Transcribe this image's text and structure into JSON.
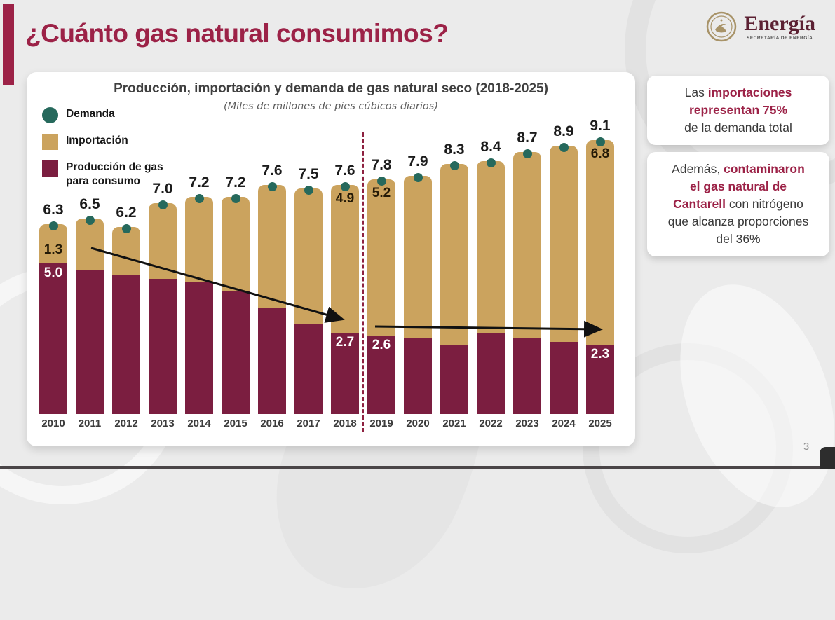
{
  "slide": {
    "title": "¿Cuánto gas natural consumimos?",
    "page_number": "3"
  },
  "logo": {
    "wordmark": "Energía",
    "subtitle": "SECRETARÍA DE ENERGÍA"
  },
  "chart": {
    "title": "Producción, importación y demanda de gas natural seco (2018-2025)",
    "subtitle": "(Miles de millones de pies cúbicos diarios)",
    "legend": [
      {
        "label": "Demanda",
        "color": "#26695c",
        "shape": "circle"
      },
      {
        "label": "Importación",
        "color": "#cba35e",
        "shape": "square"
      },
      {
        "label": "Producción de gas para consumo",
        "color": "#7b1e40",
        "shape": "square"
      }
    ]
  },
  "chart_data": {
    "type": "bar",
    "stacked": true,
    "title": "Producción, importación y demanda de gas natural seco (2018-2025)",
    "subtitle": "(Miles de millones de pies cúbicos diarios)",
    "unit": "miles de millones de pies cúbicos diarios",
    "categories": [
      "2010",
      "2011",
      "2012",
      "2013",
      "2014",
      "2015",
      "2016",
      "2017",
      "2018",
      "2019",
      "2020",
      "2021",
      "2022",
      "2023",
      "2024",
      "2025"
    ],
    "series": [
      {
        "name": "Producción de gas para consumo",
        "color": "#7b1e40",
        "values": [
          5.0,
          4.8,
          4.6,
          4.5,
          4.4,
          4.1,
          3.5,
          3.0,
          2.7,
          2.6,
          2.5,
          2.3,
          2.7,
          2.5,
          2.4,
          2.3
        ],
        "shown_labels": {
          "2010": "5.0",
          "2018": "2.7",
          "2019": "2.6",
          "2025": "2.3"
        }
      },
      {
        "name": "Importación",
        "color": "#cba35e",
        "values": [
          1.3,
          1.7,
          1.6,
          2.5,
          2.8,
          3.1,
          4.1,
          4.5,
          4.9,
          5.2,
          5.4,
          6.0,
          5.7,
          6.2,
          6.5,
          6.8
        ],
        "shown_labels": {
          "2010": "1.3",
          "2018": "4.9",
          "2019": "5.2",
          "2025": "6.8"
        }
      },
      {
        "name": "Demanda",
        "marker": "point",
        "color": "#26695c",
        "values": [
          6.3,
          6.5,
          6.2,
          7.0,
          7.2,
          7.2,
          7.6,
          7.5,
          7.6,
          7.8,
          7.9,
          8.3,
          8.4,
          8.7,
          8.9,
          9.1
        ]
      }
    ],
    "total_labels": [
      "6.3",
      "6.5",
      "6.2",
      "7.0",
      "7.2",
      "7.2",
      "7.6",
      "7.5",
      "7.6",
      "7.8",
      "7.9",
      "8.3",
      "8.4",
      "8.7",
      "8.9",
      "9.1"
    ],
    "ylim": [
      0,
      9.5
    ],
    "grid": false,
    "legend_position": "top-left",
    "divider_between": [
      "2018",
      "2019"
    ],
    "annotations": [
      {
        "type": "arrow",
        "trend": "down",
        "from_category": "2011",
        "to_category": "2018"
      },
      {
        "type": "arrow",
        "trend": "flat",
        "from_category": "2019",
        "to_category": "2025"
      }
    ]
  },
  "panels": [
    {
      "name": "imports-share",
      "lines": [
        [
          {
            "t": "Las ",
            "em": false
          },
          {
            "t": "importaciones",
            "em": true
          }
        ],
        [
          {
            "t": "representan 75%",
            "em": true
          }
        ],
        [
          {
            "t": "de la demanda total",
            "em": false
          }
        ]
      ]
    },
    {
      "name": "cantarell-nitrogen",
      "lines": [
        [
          {
            "t": "Además, ",
            "em": false
          },
          {
            "t": "contaminaron",
            "em": true
          }
        ],
        [
          {
            "t": "el gas natural de",
            "em": true
          }
        ],
        [
          {
            "t": "Cantarell",
            "em": true
          },
          {
            "t": " con nitrógeno",
            "em": false
          }
        ],
        [
          {
            "t": "que alcanza proporciones",
            "em": false
          }
        ],
        [
          {
            "t": "del 36%",
            "em": false
          }
        ]
      ]
    }
  ],
  "colors": {
    "accent_maroon": "#9c2247",
    "bar_production": "#7b1e40",
    "bar_import": "#cba35e",
    "demand_dot": "#26695c",
    "divider": "#8e2140",
    "background": "#ebebeb"
  }
}
